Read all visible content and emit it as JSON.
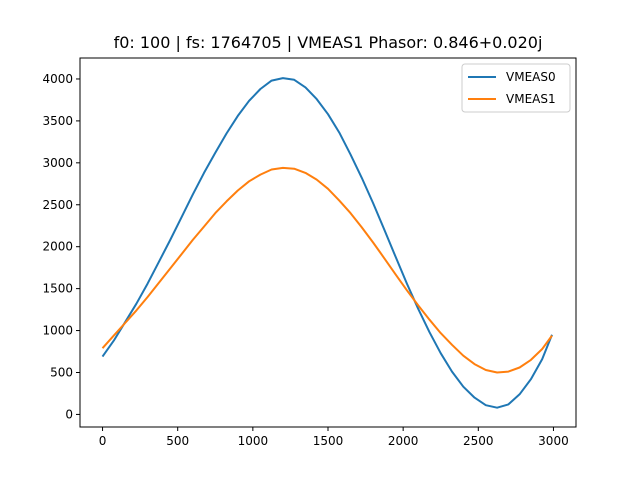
{
  "chart_data": {
    "type": "line",
    "title": "f0: 100 | fs: 1764705 | VMEAS1 Phasor: 0.846+0.020j",
    "xlabel": "",
    "ylabel": "",
    "xlim": [
      -150,
      3150
    ],
    "ylim": [
      -150,
      4250
    ],
    "x_ticks": [
      0,
      500,
      1000,
      1500,
      2000,
      2500,
      3000
    ],
    "y_ticks": [
      0,
      500,
      1000,
      1500,
      2000,
      2500,
      3000,
      3500,
      4000
    ],
    "grid": false,
    "legend": "upper-right",
    "x": [
      0,
      75,
      150,
      225,
      300,
      375,
      450,
      525,
      600,
      675,
      750,
      825,
      900,
      975,
      1050,
      1125,
      1200,
      1275,
      1350,
      1425,
      1500,
      1575,
      1650,
      1725,
      1800,
      1875,
      1950,
      2025,
      2100,
      2175,
      2250,
      2325,
      2400,
      2475,
      2550,
      2625,
      2700,
      2775,
      2850,
      2925,
      2990
    ],
    "series": [
      {
        "name": "VMEAS0",
        "color": "#1f77b4",
        "values": [
          690,
          880,
          1100,
          1320,
          1560,
          1820,
          2080,
          2350,
          2620,
          2880,
          3120,
          3350,
          3560,
          3740,
          3880,
          3980,
          4010,
          3990,
          3900,
          3760,
          3580,
          3360,
          3100,
          2820,
          2520,
          2200,
          1880,
          1560,
          1260,
          980,
          730,
          510,
          330,
          200,
          110,
          80,
          120,
          240,
          420,
          660,
          950
        ]
      },
      {
        "name": "VMEAS1",
        "color": "#ff7f0e",
        "values": [
          790,
          940,
          1090,
          1240,
          1400,
          1570,
          1740,
          1910,
          2080,
          2240,
          2400,
          2540,
          2670,
          2780,
          2860,
          2920,
          2940,
          2930,
          2880,
          2800,
          2690,
          2550,
          2400,
          2230,
          2050,
          1860,
          1670,
          1480,
          1300,
          1130,
          970,
          830,
          700,
          600,
          530,
          500,
          510,
          560,
          650,
          780,
          940
        ]
      }
    ]
  }
}
